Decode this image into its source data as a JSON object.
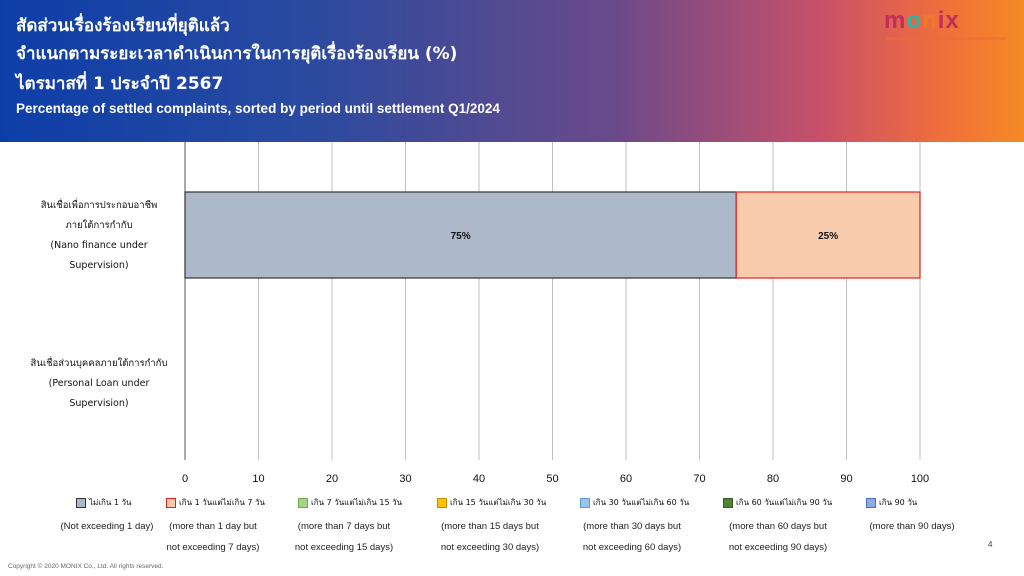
{
  "header": {
    "title_th_1": "สัดส่วนเรื่องร้องเรียนที่ยุติแล้ว",
    "title_th_2": "จำแนกตามระยะเวลาดำเนินการในการยุติเรื่องร้องเรียน (%)",
    "title_th_3": "ไตรมาสที่ 1 ประจำปี 2567",
    "title_en": "Percentage of settled complaints, sorted by period until settlement Q1/2024",
    "logo_m": "m",
    "logo_o": "o",
    "logo_n": "n",
    "logo_rest": "ix"
  },
  "chart_data": {
    "type": "bar",
    "orientation": "horizontal",
    "stacked": true,
    "categories": [
      {
        "lines": [
          "สินเชื่อเพื่อการประกอบอาชีพ",
          "ภายใต้การกำกับ",
          "(Nano finance under",
          "Supervision)"
        ]
      },
      {
        "lines": [
          "สินเชื่อส่วนบุคคลภายใต้การกำกับ",
          "(Personal Loan under",
          "Supervision)"
        ]
      }
    ],
    "series": [
      {
        "name": "ไม่เกิน 1 วัน",
        "desc": [
          "(Not exceeding 1 day)"
        ],
        "color": "#adb9ca",
        "border": "#333333",
        "values": [
          75,
          0
        ],
        "labels": [
          "75%",
          ""
        ]
      },
      {
        "name": "เกิน 1 วันแต่ไม่เกิน 7 วัน",
        "desc": [
          "(more than 1 day but",
          "not exceeding 7 days)"
        ],
        "color": "#f8cbad",
        "border": "#e02020",
        "values": [
          25,
          0
        ],
        "labels": [
          "25%",
          ""
        ]
      },
      {
        "name": "เกิน 7 วันแต่ไม่เกิน 15 วัน",
        "desc": [
          "(more than 7 days but",
          "not exceeding 15 days)"
        ],
        "color": "#a9d18e",
        "border": "#70ad47",
        "values": [
          0,
          0
        ],
        "labels": [
          "",
          ""
        ]
      },
      {
        "name": "เกิน 15 วันแต่ไม่เกิน 30 วัน",
        "desc": [
          "(more than 15 days but",
          "not exceeding 30 days)"
        ],
        "color": "#ffc000",
        "border": "#bf9000",
        "values": [
          0,
          0
        ],
        "labels": [
          "",
          ""
        ]
      },
      {
        "name": "เกิน 30 วันแต่ไม่เกิน 60 วัน",
        "desc": [
          "(more than 30 days but",
          "not exceeding 60 days)"
        ],
        "color": "#9dc3e6",
        "border": "#5b9bd5",
        "values": [
          0,
          0
        ],
        "labels": [
          "",
          ""
        ]
      },
      {
        "name": "เกิน 60 วันแต่ไม่เกิน 90 วัน",
        "desc": [
          "(more than 60 days but",
          "not exceeding 90 days)"
        ],
        "color": "#548235",
        "border": "#385723",
        "values": [
          0,
          0
        ],
        "labels": [
          "",
          ""
        ]
      },
      {
        "name": "เกิน 90 วัน",
        "desc": [
          "(more than 90 days)"
        ],
        "color": "#8faadc",
        "border": "#4472c4",
        "values": [
          0,
          0
        ],
        "labels": [
          "",
          ""
        ]
      }
    ],
    "xlim": [
      0,
      100
    ],
    "xticks": [
      0,
      10,
      20,
      30,
      40,
      50,
      60,
      70,
      80,
      90,
      100
    ],
    "grid": true,
    "legend_position": "bottom"
  },
  "footer": {
    "copyright": "Copyright © 2020 MONIX Co., Ltd. All rights reserved.",
    "page": "4"
  }
}
